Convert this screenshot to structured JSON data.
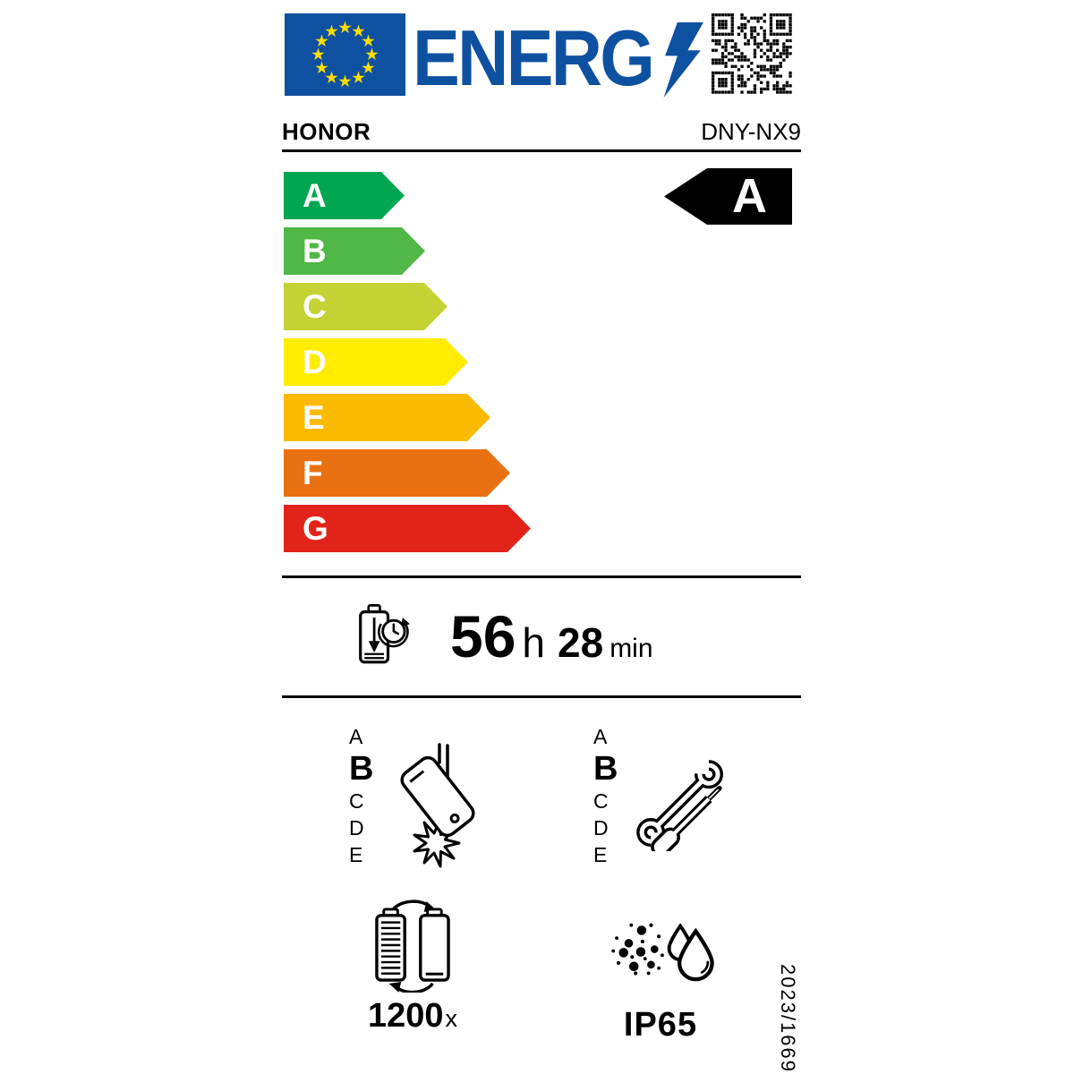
{
  "header": {
    "logo_text": "ENERG",
    "brand": "HONOR",
    "model": "DNY-NX9"
  },
  "colors": {
    "eu_blue": "#0e51a0",
    "star_yellow": "#ffdd00",
    "indicator_black": "#000000",
    "class_colors": [
      "#00a651",
      "#51b747",
      "#c4d333",
      "#ffec00",
      "#fbba00",
      "#e97112",
      "#e2231a"
    ]
  },
  "scale": {
    "classes": [
      {
        "label": "A",
        "color": "#00a651"
      },
      {
        "label": "B",
        "color": "#51b747"
      },
      {
        "label": "C",
        "color": "#c4d333"
      },
      {
        "label": "D",
        "color": "#ffec00"
      },
      {
        "label": "E",
        "color": "#fbba00"
      },
      {
        "label": "F",
        "color": "#e97112"
      },
      {
        "label": "G",
        "color": "#e2231a"
      }
    ],
    "rating": "A"
  },
  "battery_endurance": {
    "hours": "56",
    "hours_unit": "h",
    "minutes": "28",
    "minutes_unit": "min"
  },
  "fall_resistance": {
    "scale": [
      {
        "label": "A",
        "selected": false
      },
      {
        "label": "B",
        "selected": true
      },
      {
        "label": "C",
        "selected": false
      },
      {
        "label": "D",
        "selected": false
      },
      {
        "label": "E",
        "selected": false
      }
    ]
  },
  "repairability": {
    "scale": [
      {
        "label": "A",
        "selected": false
      },
      {
        "label": "B",
        "selected": true
      },
      {
        "label": "C",
        "selected": false
      },
      {
        "label": "D",
        "selected": false
      },
      {
        "label": "E",
        "selected": false
      }
    ]
  },
  "battery_cycles": {
    "value": "1200",
    "unit": "x"
  },
  "ingress_protection": {
    "rating": "IP65"
  },
  "regulation": {
    "text": "2023/1669"
  },
  "icons": {
    "names": [
      "eu-flag-icon",
      "energy-lightning-icon",
      "qr-code",
      "battery-clock-icon",
      "falling-phone-icon",
      "repair-tools-icon",
      "battery-cycles-icon",
      "dust-water-icon"
    ]
  }
}
